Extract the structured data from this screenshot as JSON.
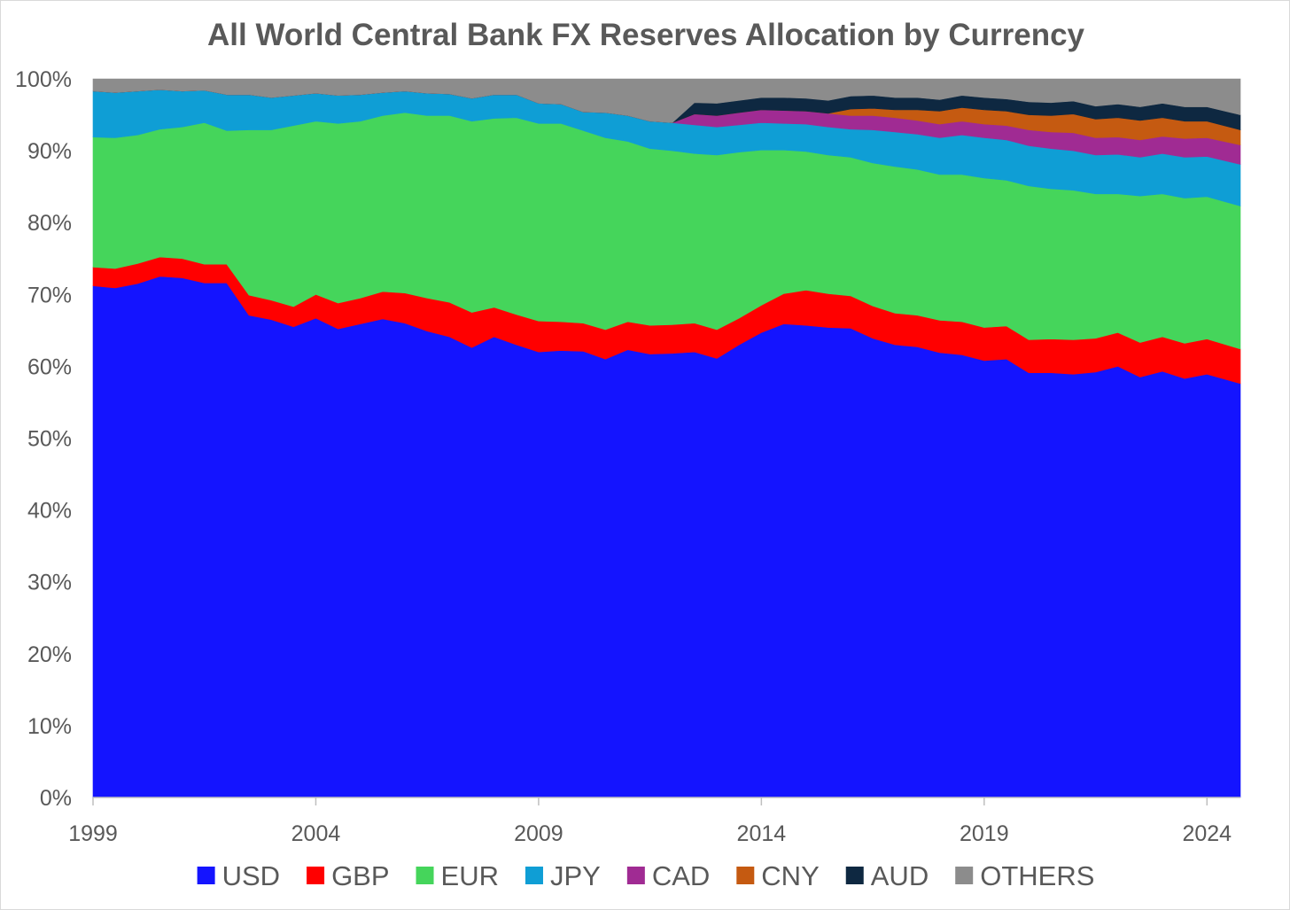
{
  "chart_data": {
    "type": "area",
    "stacked": true,
    "title": "All World Central Bank FX Reserves Allocation by Currency",
    "xlabel": "",
    "ylabel": "",
    "xlim": [
      1999,
      2024.75
    ],
    "ylim": [
      0,
      100
    ],
    "x_ticks": [
      1999,
      2004,
      2009,
      2014,
      2019,
      2024
    ],
    "x_tick_labels": [
      "1999",
      "2004",
      "2009",
      "2014",
      "2019",
      "2024"
    ],
    "y_ticks": [
      0,
      10,
      20,
      30,
      40,
      50,
      60,
      70,
      80,
      90,
      100
    ],
    "y_tick_labels": [
      "0%",
      "10%",
      "20%",
      "30%",
      "40%",
      "50%",
      "60%",
      "70%",
      "80%",
      "90%",
      "100%"
    ],
    "legend_position": "bottom",
    "x": [
      1999,
      1999.5,
      2000,
      2000.5,
      2001,
      2001.5,
      2002,
      2002.5,
      2003,
      2003.5,
      2004,
      2004.5,
      2005,
      2005.5,
      2006,
      2006.5,
      2007,
      2007.5,
      2008,
      2008.5,
      2009,
      2009.5,
      2010,
      2010.5,
      2011,
      2011.5,
      2012,
      2012.5,
      2013,
      2013.5,
      2014,
      2014.5,
      2015,
      2015.5,
      2016,
      2016.5,
      2017,
      2017.5,
      2018,
      2018.5,
      2019,
      2019.5,
      2020,
      2020.5,
      2021,
      2021.5,
      2022,
      2022.5,
      2023,
      2023.5,
      2024,
      2024.75
    ],
    "series": [
      {
        "name": "USD",
        "color": "#1414FF",
        "values": [
          71.2,
          70.9,
          71.5,
          72.5,
          72.3,
          71.6,
          71.6,
          67.1,
          66.5,
          65.5,
          66.7,
          65.2,
          65.9,
          66.6,
          66.0,
          64.9,
          64.1,
          62.6,
          64.1,
          63.0,
          62.0,
          62.2,
          62.1,
          61.0,
          62.3,
          61.7,
          61.8,
          62.0,
          61.1,
          63.0,
          64.7,
          65.9,
          65.7,
          65.4,
          65.3,
          63.9,
          63.0,
          62.7,
          61.9,
          61.6,
          60.8,
          61.0,
          59.1,
          59.1,
          58.9,
          59.2,
          60.0,
          58.5,
          59.3,
          58.3,
          58.9,
          57.6
        ]
      },
      {
        "name": "GBP",
        "color": "#FF0000",
        "values": [
          2.6,
          2.7,
          2.8,
          2.7,
          2.7,
          2.6,
          2.6,
          2.8,
          2.7,
          2.8,
          3.3,
          3.6,
          3.6,
          3.8,
          4.2,
          4.6,
          4.8,
          4.9,
          4.1,
          4.2,
          4.3,
          4.0,
          3.9,
          4.1,
          3.9,
          4.0,
          4.0,
          4.0,
          4.0,
          3.7,
          3.8,
          4.2,
          4.9,
          4.7,
          4.5,
          4.5,
          4.4,
          4.4,
          4.5,
          4.6,
          4.6,
          4.6,
          4.6,
          4.7,
          4.8,
          4.7,
          4.7,
          4.8,
          4.8,
          4.9,
          4.9,
          4.8
        ]
      },
      {
        "name": "EUR",
        "color": "#45D55B",
        "values": [
          18.1,
          18.2,
          17.9,
          17.8,
          18.3,
          19.7,
          18.6,
          23.0,
          23.7,
          25.2,
          24.1,
          25.0,
          24.6,
          24.5,
          25.1,
          25.4,
          26.0,
          26.6,
          26.3,
          27.4,
          27.5,
          27.6,
          26.8,
          26.7,
          25.1,
          24.6,
          24.2,
          23.6,
          24.3,
          23.1,
          21.6,
          20.0,
          19.3,
          19.3,
          19.3,
          19.9,
          20.4,
          20.3,
          20.3,
          20.5,
          20.8,
          20.3,
          21.4,
          20.9,
          20.8,
          20.1,
          19.3,
          20.4,
          19.9,
          20.2,
          19.8,
          19.9
        ]
      },
      {
        "name": "JPY",
        "color": "#0F9ED5",
        "values": [
          6.4,
          6.3,
          6.1,
          5.5,
          5.0,
          4.5,
          5.0,
          4.9,
          4.5,
          4.2,
          3.9,
          3.9,
          3.7,
          3.2,
          3.0,
          3.1,
          3.0,
          3.2,
          3.3,
          3.2,
          2.8,
          2.7,
          2.6,
          3.5,
          3.6,
          3.8,
          3.9,
          4.0,
          3.9,
          3.8,
          3.8,
          3.7,
          3.8,
          3.9,
          3.9,
          4.6,
          4.8,
          4.9,
          5.1,
          5.5,
          5.6,
          5.6,
          5.6,
          5.6,
          5.5,
          5.4,
          5.5,
          5.4,
          5.6,
          5.7,
          5.6,
          5.8
        ]
      },
      {
        "name": "CAD",
        "color": "#A02B93",
        "values": [
          0,
          0,
          0,
          0,
          0,
          0,
          0,
          0,
          0,
          0,
          0,
          0,
          0,
          0,
          0,
          0,
          0,
          0,
          0,
          0,
          0,
          0,
          0,
          0,
          0,
          0,
          0,
          1.5,
          1.6,
          1.7,
          1.8,
          1.8,
          1.8,
          1.9,
          1.9,
          2.0,
          2.0,
          1.9,
          1.9,
          1.9,
          1.9,
          2.0,
          2.2,
          2.3,
          2.5,
          2.4,
          2.4,
          2.4,
          2.4,
          2.6,
          2.6,
          2.7
        ]
      },
      {
        "name": "CNY",
        "color": "#C55A11",
        "values": [
          0,
          0,
          0,
          0,
          0,
          0,
          0,
          0,
          0,
          0,
          0,
          0,
          0,
          0,
          0,
          0,
          0,
          0,
          0,
          0,
          0,
          0,
          0,
          0,
          0,
          0,
          0,
          0,
          0,
          0,
          0,
          0,
          0,
          0,
          0.9,
          1.0,
          1.1,
          1.5,
          1.8,
          1.9,
          2.0,
          2.0,
          2.1,
          2.3,
          2.6,
          2.6,
          2.7,
          2.7,
          2.6,
          2.4,
          2.3,
          2.1
        ]
      },
      {
        "name": "AUD",
        "color": "#0E2841",
        "values": [
          0,
          0,
          0,
          0,
          0,
          0,
          0,
          0,
          0,
          0,
          0,
          0,
          0,
          0,
          0,
          0,
          0,
          0,
          0,
          0,
          0,
          0,
          0,
          0,
          0,
          0,
          0,
          1.6,
          1.7,
          1.7,
          1.7,
          1.8,
          1.8,
          1.8,
          1.8,
          1.8,
          1.7,
          1.7,
          1.6,
          1.7,
          1.7,
          1.7,
          1.8,
          1.8,
          1.8,
          1.8,
          1.9,
          1.9,
          2.0,
          2.0,
          2.0,
          2.1
        ]
      },
      {
        "name": "OTHERS",
        "color": "#8C8C8C",
        "values": [
          1.7,
          1.9,
          1.7,
          1.5,
          1.7,
          1.6,
          2.2,
          2.2,
          2.6,
          2.3,
          2.0,
          2.3,
          2.2,
          1.9,
          1.7,
          2.0,
          2.1,
          2.7,
          2.2,
          2.2,
          3.4,
          3.5,
          4.6,
          4.7,
          5.1,
          5.9,
          6.1,
          3.3,
          3.4,
          3.0,
          2.6,
          2.6,
          2.7,
          3.0,
          2.4,
          2.3,
          2.6,
          2.6,
          2.9,
          2.3,
          2.6,
          2.8,
          3.2,
          3.3,
          3.1,
          3.8,
          3.5,
          3.9,
          3.4,
          3.9,
          3.9,
          5.0
        ]
      }
    ]
  }
}
